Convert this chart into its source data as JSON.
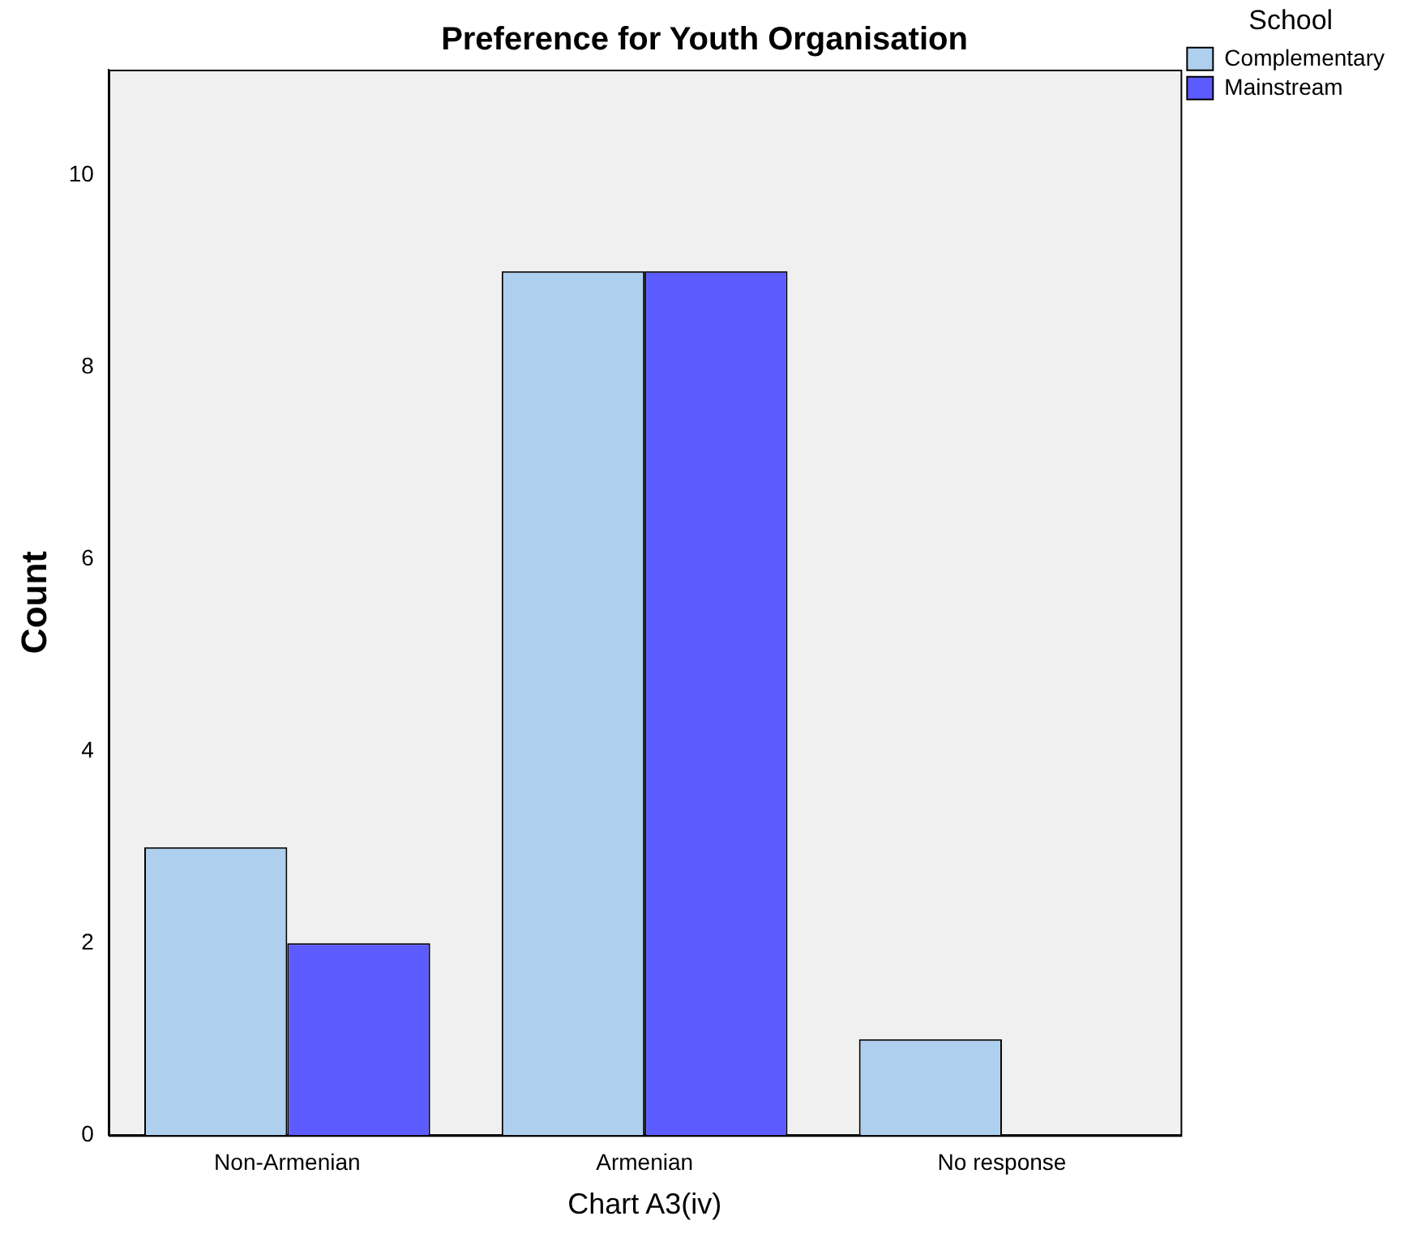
{
  "chart_data": {
    "type": "bar",
    "title": "Preference for Youth Organisation",
    "xlabel": "Chart A3(iv)",
    "ylabel": "Count",
    "legend_title": "School",
    "categories": [
      "Non-Armenian",
      "Armenian",
      "No response"
    ],
    "series": [
      {
        "name": "Complementary",
        "color": "#aecfee",
        "values": [
          3,
          9,
          1
        ]
      },
      {
        "name": "Mainstream",
        "color": "#5b5bff",
        "values": [
          2,
          9,
          0
        ]
      }
    ],
    "ylim": [
      0,
      11.1
    ],
    "yticks": [
      0,
      2,
      4,
      6,
      8,
      10
    ],
    "grid": false,
    "legend": "top right"
  }
}
